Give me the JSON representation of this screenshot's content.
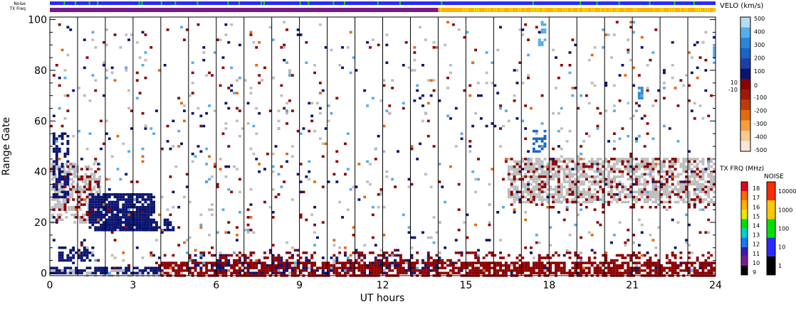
{
  "header": {
    "noise_label": "Noise",
    "txfrq_label": "TX Freq"
  },
  "chart_data": {
    "type": "heatmap",
    "xlabel": "UT hours",
    "ylabel": "Range Gate",
    "xlim": [
      0,
      24
    ],
    "ylim": [
      -1,
      101
    ],
    "xticks": [
      0,
      3,
      6,
      9,
      12,
      15,
      18,
      21,
      24
    ],
    "yticks": [
      0,
      20,
      40,
      60,
      80,
      100
    ],
    "hour_dividers": [
      1,
      2,
      3,
      4,
      5,
      6,
      7,
      8,
      9,
      10,
      11,
      12,
      13,
      14,
      15,
      16,
      17,
      18,
      19,
      20,
      21,
      22,
      23
    ],
    "velocity_scale": {
      "title": "VELO (km/s)",
      "ticks": [
        "500",
        "400",
        "300",
        "200",
        "100",
        "10",
        "0",
        "-10",
        "-100",
        "-200",
        "-300",
        "-400",
        "-500"
      ],
      "colors": [
        "#fbe6d6",
        "#f9c98f",
        "#f79c3e",
        "#e46a0e",
        "#c03a08",
        "#a01a0a",
        "#8b0000",
        "#0a1470",
        "#1f3ea5",
        "#1a63c8",
        "#2b86da",
        "#55aee9",
        "#b7ddf5"
      ]
    },
    "txfreq_scale": {
      "title": "TX FRQ (MHz)",
      "ticks": [
        "18",
        "17",
        "16",
        "15",
        "14",
        "13",
        "12",
        "11",
        "10",
        "9"
      ],
      "colors": [
        "#e8001c",
        "#ff6a00",
        "#ffb000",
        "#e8e800",
        "#00e000",
        "#00d0d0",
        "#1878ff",
        "#3a1ab0",
        "#7a1a8a",
        "#000000"
      ]
    },
    "noise_scale": {
      "title": "NOISE",
      "ticks": [
        "10000",
        "1000",
        "100",
        "10",
        "1"
      ],
      "colors": [
        "#ff2a00",
        "#ffc800",
        "#00e000",
        "#2a2aff",
        "#000000"
      ]
    },
    "series": [
      {
        "regions": [
          {
            "x0": 0.05,
            "x1": 1.8,
            "y0": 20,
            "y1": 44,
            "color": "#bdbdbd",
            "density": 0.55
          },
          {
            "x0": 0.1,
            "x1": 1.8,
            "y0": 22,
            "y1": 42,
            "color": "#8b0000",
            "density": 0.18
          },
          {
            "x0": 0.1,
            "x1": 0.7,
            "y0": 30,
            "y1": 56,
            "color": "#0a1470",
            "density": 0.45
          },
          {
            "x0": 1.4,
            "x1": 3.8,
            "y0": 17,
            "y1": 32,
            "color": "#0a1470",
            "density": 0.85
          },
          {
            "x0": 0.3,
            "x1": 1.6,
            "y0": 5,
            "y1": 11,
            "color": "#0a1470",
            "density": 0.5
          },
          {
            "x0": 1.8,
            "x1": 4.5,
            "y0": 17,
            "y1": 22,
            "color": "#0a1470",
            "density": 0.6
          },
          {
            "x0": 0,
            "x1": 4,
            "y0": 0,
            "y1": 3,
            "color": "#0a1470",
            "density": 0.75
          },
          {
            "x0": 0,
            "x1": 5,
            "y0": -1,
            "y1": 2,
            "color": "#bdbdbd",
            "density": 0.3
          },
          {
            "x0": 4,
            "x1": 24,
            "y0": -1,
            "y1": 5,
            "color": "#8b0000",
            "density": 0.72
          },
          {
            "x0": 5,
            "x1": 14,
            "y0": 0,
            "y1": 8,
            "color": "#0a1470",
            "density": 0.18
          },
          {
            "x0": 5,
            "x1": 24,
            "y0": 4,
            "y1": 9,
            "color": "#8b0000",
            "density": 0.25
          },
          {
            "x0": 16.5,
            "x1": 24,
            "y0": 28,
            "y1": 46,
            "color": "#bdbdbd",
            "density": 0.6
          },
          {
            "x0": 16.5,
            "x1": 24,
            "y0": 26,
            "y1": 46,
            "color": "#8b0000",
            "density": 0.14
          },
          {
            "x0": 17.4,
            "x1": 17.9,
            "y0": 48,
            "y1": 57,
            "color": "#1a63c8",
            "density": 0.55
          },
          {
            "x0": 17.6,
            "x1": 17.9,
            "y0": 90,
            "y1": 100,
            "color": "#55aee9",
            "density": 0.45
          },
          {
            "x0": 21.2,
            "x1": 21.4,
            "y0": 68,
            "y1": 75,
            "color": "#2b86da",
            "density": 0.6
          },
          {
            "x0": 23.9,
            "x1": 24,
            "y0": 82,
            "y1": 90,
            "color": "#55aee9",
            "density": 0.6
          },
          {
            "x0": 0,
            "x1": 24,
            "y0": 0,
            "y1": 100,
            "color": "#8b0000",
            "density": 0.012
          },
          {
            "x0": 0,
            "x1": 24,
            "y0": 0,
            "y1": 100,
            "color": "#0a1470",
            "density": 0.01
          },
          {
            "x0": 0,
            "x1": 24,
            "y0": 0,
            "y1": 100,
            "color": "#bdbdbd",
            "density": 0.012
          },
          {
            "x0": 0,
            "x1": 24,
            "y0": 0,
            "y1": 100,
            "color": "#55aee9",
            "density": 0.006
          },
          {
            "x0": 0,
            "x1": 24,
            "y0": 0,
            "y1": 100,
            "color": "#e46a0e",
            "density": 0.004
          }
        ]
      }
    ],
    "txfreq_bar": [
      {
        "x0": 0,
        "x1": 14,
        "color": "#7a1a8a"
      },
      {
        "x0": 14,
        "x1": 24,
        "color": "#ffb000"
      }
    ],
    "noise_bar": {
      "base": "#2a2aff",
      "accent": "#00e000",
      "accent_density": 0.12
    }
  }
}
